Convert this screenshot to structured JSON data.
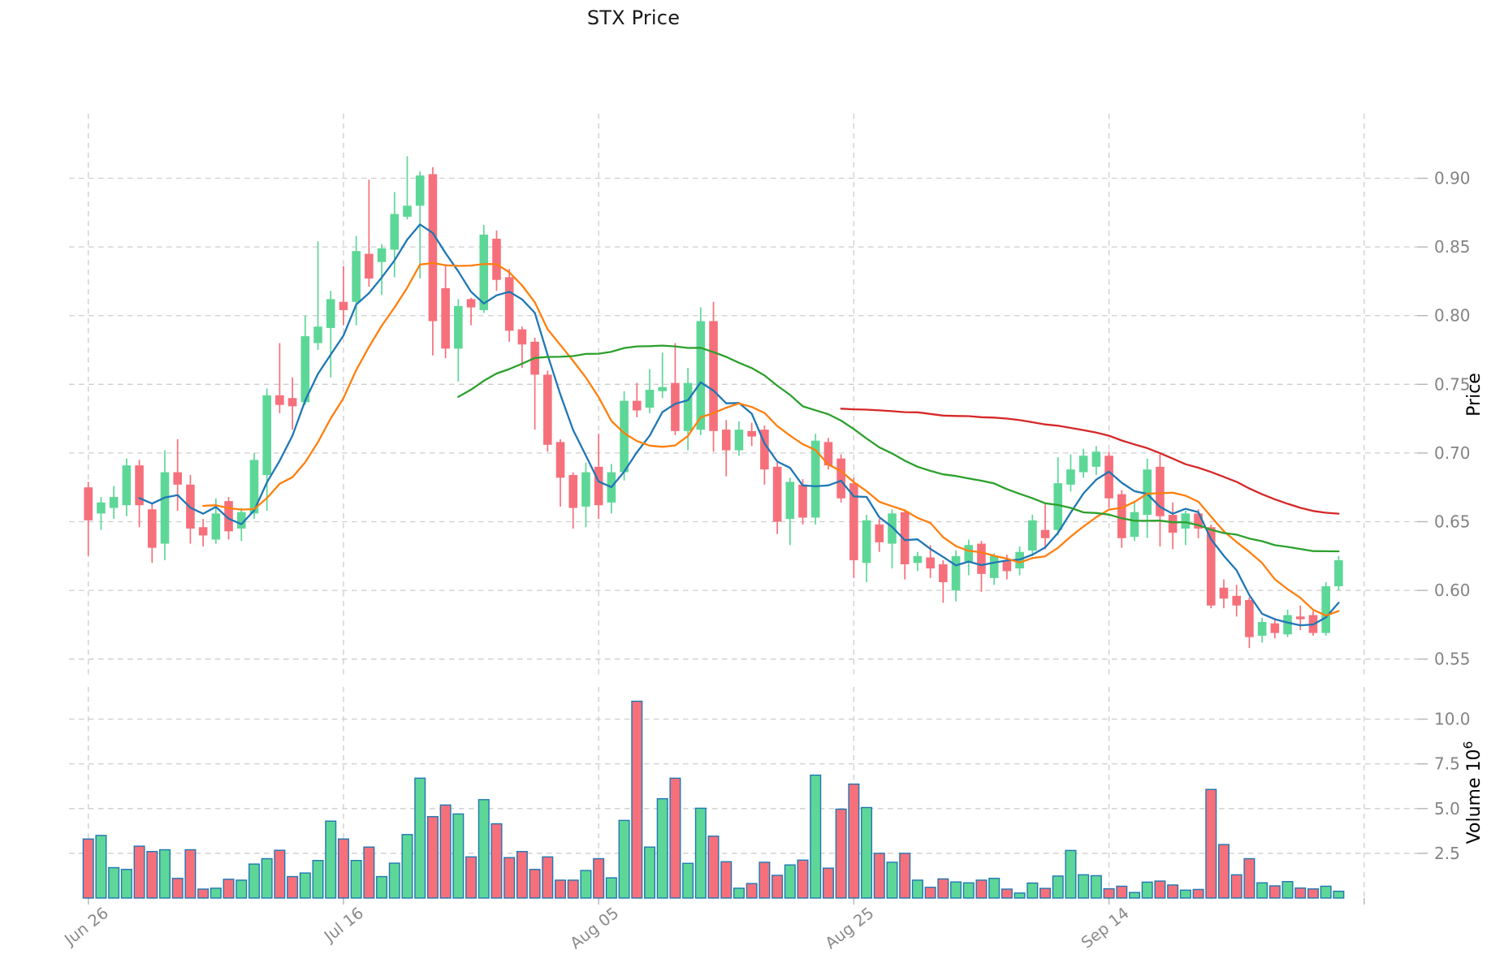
{
  "title": "STX Price",
  "axes": {
    "price_axis_label": "Price",
    "volume_axis_label": "Volume",
    "volume_axis_exponent": "10",
    "volume_axis_exponent_sup": "6",
    "price_tick_labels": [
      "0.90",
      "0.85",
      "0.80",
      "0.75",
      "0.70",
      "0.65",
      "0.60",
      "0.55"
    ],
    "volume_tick_labels": [
      "10.0",
      "7.5",
      "5.0",
      "2.5"
    ],
    "x_tick_labels": [
      "Jun 26",
      "Jul 16",
      "Aug 05",
      "Aug 25",
      "Sep 14"
    ]
  },
  "chart_data": {
    "type": "candlestick",
    "title": "STX Price",
    "xlabel": "",
    "ylabel": "Price",
    "ylabel2": "Volume 10^6",
    "grid": true,
    "legend_position": "none",
    "price_ticks": [
      0.9,
      0.85,
      0.8,
      0.75,
      0.7,
      0.65,
      0.6,
      0.55
    ],
    "volume_ticks_millions": [
      10.0,
      7.5,
      5.0,
      2.5
    ],
    "x_ticks": [
      {
        "index": 0,
        "label": "Jun 26"
      },
      {
        "index": 20,
        "label": "Jul 16"
      },
      {
        "index": 40,
        "label": "Aug 05"
      },
      {
        "index": 60,
        "label": "Aug 25"
      },
      {
        "index": 80,
        "label": "Sep 14"
      },
      {
        "index": 100,
        "label": ""
      }
    ],
    "price_range": [
      0.538,
      0.947
    ],
    "volume_range_millions": [
      0,
      11.8
    ],
    "overlays": [
      {
        "name": "sma-5",
        "period": 5,
        "color": "#1f77b4"
      },
      {
        "name": "sma-10",
        "period": 10,
        "color": "#ff7f0e"
      },
      {
        "name": "sma-30",
        "period": 30,
        "color": "#2ca02c"
      },
      {
        "name": "sma-60",
        "period": 60,
        "color": "#d62728"
      }
    ],
    "ohlcv": [
      [
        0.675,
        0.679,
        0.625,
        0.651,
        3.3
      ],
      [
        0.656,
        0.668,
        0.644,
        0.664,
        3.5
      ],
      [
        0.66,
        0.676,
        0.652,
        0.668,
        1.7
      ],
      [
        0.662,
        0.696,
        0.654,
        0.691,
        1.6
      ],
      [
        0.691,
        0.695,
        0.646,
        0.662,
        2.9
      ],
      [
        0.659,
        0.664,
        0.62,
        0.631,
        2.6
      ],
      [
        0.634,
        0.702,
        0.622,
        0.686,
        2.7
      ],
      [
        0.686,
        0.71,
        0.658,
        0.677,
        1.1
      ],
      [
        0.677,
        0.684,
        0.634,
        0.645,
        2.7
      ],
      [
        0.646,
        0.652,
        0.632,
        0.64,
        0.5
      ],
      [
        0.637,
        0.667,
        0.634,
        0.656,
        0.55
      ],
      [
        0.665,
        0.668,
        0.637,
        0.643,
        1.05
      ],
      [
        0.645,
        0.66,
        0.636,
        0.657,
        1.0
      ],
      [
        0.656,
        0.7,
        0.652,
        0.695,
        1.9
      ],
      [
        0.684,
        0.747,
        0.658,
        0.742,
        2.2
      ],
      [
        0.742,
        0.78,
        0.729,
        0.735,
        2.67
      ],
      [
        0.74,
        0.755,
        0.717,
        0.734,
        1.2
      ],
      [
        0.737,
        0.8,
        0.735,
        0.785,
        1.4
      ],
      [
        0.78,
        0.854,
        0.775,
        0.792,
        2.1
      ],
      [
        0.791,
        0.818,
        0.755,
        0.812,
        4.3
      ],
      [
        0.81,
        0.836,
        0.793,
        0.804,
        3.3
      ],
      [
        0.81,
        0.858,
        0.793,
        0.847,
        2.1
      ],
      [
        0.845,
        0.899,
        0.821,
        0.827,
        2.85
      ],
      [
        0.839,
        0.852,
        0.815,
        0.849,
        1.2
      ],
      [
        0.848,
        0.89,
        0.828,
        0.874,
        1.95
      ],
      [
        0.872,
        0.916,
        0.87,
        0.88,
        3.55
      ],
      [
        0.88,
        0.905,
        0.827,
        0.902,
        6.7
      ],
      [
        0.903,
        0.908,
        0.771,
        0.796,
        4.55
      ],
      [
        0.82,
        0.836,
        0.769,
        0.776,
        5.2
      ],
      [
        0.776,
        0.812,
        0.752,
        0.807,
        4.7
      ],
      [
        0.812,
        0.813,
        0.793,
        0.806,
        2.3
      ],
      [
        0.804,
        0.866,
        0.802,
        0.859,
        5.5
      ],
      [
        0.856,
        0.862,
        0.818,
        0.826,
        4.15
      ],
      [
        0.828,
        0.834,
        0.781,
        0.789,
        2.26
      ],
      [
        0.79,
        0.792,
        0.762,
        0.779,
        2.6
      ],
      [
        0.781,
        0.784,
        0.717,
        0.757,
        1.6
      ],
      [
        0.757,
        0.76,
        0.701,
        0.706,
        2.3
      ],
      [
        0.708,
        0.71,
        0.661,
        0.682,
        1.0
      ],
      [
        0.684,
        0.686,
        0.645,
        0.66,
        1.0
      ],
      [
        0.661,
        0.693,
        0.646,
        0.686,
        1.54
      ],
      [
        0.69,
        0.714,
        0.652,
        0.662,
        2.2
      ],
      [
        0.664,
        0.692,
        0.656,
        0.686,
        1.13
      ],
      [
        0.686,
        0.745,
        0.68,
        0.738,
        4.34
      ],
      [
        0.738,
        0.751,
        0.726,
        0.731,
        11.0
      ],
      [
        0.733,
        0.761,
        0.729,
        0.746,
        2.85
      ],
      [
        0.745,
        0.773,
        0.74,
        0.748,
        5.55
      ],
      [
        0.751,
        0.78,
        0.713,
        0.716,
        6.7
      ],
      [
        0.716,
        0.762,
        0.702,
        0.751,
        1.94
      ],
      [
        0.717,
        0.806,
        0.713,
        0.796,
        5.02
      ],
      [
        0.796,
        0.81,
        0.701,
        0.716,
        3.46
      ],
      [
        0.717,
        0.724,
        0.683,
        0.702,
        2.03
      ],
      [
        0.702,
        0.723,
        0.698,
        0.717,
        0.55
      ],
      [
        0.716,
        0.722,
        0.705,
        0.712,
        0.81
      ],
      [
        0.717,
        0.72,
        0.677,
        0.688,
        2.0
      ],
      [
        0.69,
        0.693,
        0.641,
        0.65,
        1.27
      ],
      [
        0.652,
        0.682,
        0.633,
        0.679,
        1.85
      ],
      [
        0.677,
        0.681,
        0.648,
        0.653,
        2.12
      ],
      [
        0.653,
        0.714,
        0.648,
        0.709,
        6.87
      ],
      [
        0.708,
        0.711,
        0.688,
        0.691,
        1.67
      ],
      [
        0.696,
        0.699,
        0.664,
        0.667,
        4.97
      ],
      [
        0.678,
        0.682,
        0.609,
        0.622,
        6.37
      ],
      [
        0.62,
        0.655,
        0.606,
        0.651,
        5.06
      ],
      [
        0.648,
        0.652,
        0.628,
        0.635,
        2.5
      ],
      [
        0.634,
        0.659,
        0.616,
        0.656,
        2.0
      ],
      [
        0.657,
        0.659,
        0.608,
        0.619,
        2.5
      ],
      [
        0.62,
        0.628,
        0.614,
        0.625,
        1.0
      ],
      [
        0.624,
        0.633,
        0.609,
        0.616,
        0.6
      ],
      [
        0.619,
        0.622,
        0.591,
        0.606,
        1.07
      ],
      [
        0.6,
        0.629,
        0.592,
        0.625,
        0.9
      ],
      [
        0.621,
        0.637,
        0.611,
        0.633,
        0.85
      ],
      [
        0.634,
        0.636,
        0.599,
        0.612,
        1.0
      ],
      [
        0.609,
        0.627,
        0.604,
        0.625,
        1.1
      ],
      [
        0.622,
        0.626,
        0.608,
        0.614,
        0.5
      ],
      [
        0.616,
        0.632,
        0.611,
        0.628,
        0.28
      ],
      [
        0.629,
        0.655,
        0.625,
        0.651,
        0.84
      ],
      [
        0.644,
        0.663,
        0.63,
        0.638,
        0.54
      ],
      [
        0.644,
        0.697,
        0.64,
        0.678,
        1.23
      ],
      [
        0.677,
        0.699,
        0.672,
        0.688,
        2.66
      ],
      [
        0.686,
        0.703,
        0.682,
        0.698,
        1.3
      ],
      [
        0.69,
        0.705,
        0.684,
        0.701,
        1.25
      ],
      [
        0.698,
        0.701,
        0.66,
        0.667,
        0.52
      ],
      [
        0.67,
        0.673,
        0.631,
        0.638,
        0.66
      ],
      [
        0.639,
        0.665,
        0.636,
        0.657,
        0.31
      ],
      [
        0.655,
        0.696,
        0.638,
        0.688,
        0.89
      ],
      [
        0.69,
        0.699,
        0.632,
        0.654,
        0.95
      ],
      [
        0.655,
        0.664,
        0.63,
        0.642,
        0.73
      ],
      [
        0.645,
        0.658,
        0.633,
        0.656,
        0.44
      ],
      [
        0.656,
        0.659,
        0.638,
        0.645,
        0.48
      ],
      [
        0.646,
        0.648,
        0.587,
        0.589,
        6.07
      ],
      [
        0.602,
        0.608,
        0.587,
        0.594,
        2.99
      ],
      [
        0.596,
        0.604,
        0.581,
        0.589,
        1.3
      ],
      [
        0.593,
        0.595,
        0.558,
        0.566,
        2.2
      ],
      [
        0.567,
        0.58,
        0.562,
        0.577,
        0.85
      ],
      [
        0.576,
        0.58,
        0.565,
        0.569,
        0.68
      ],
      [
        0.568,
        0.586,
        0.566,
        0.582,
        0.92
      ],
      [
        0.581,
        0.589,
        0.571,
        0.579,
        0.56
      ],
      [
        0.582,
        0.585,
        0.567,
        0.569,
        0.51
      ],
      [
        0.569,
        0.606,
        0.567,
        0.603,
        0.66
      ],
      [
        0.603,
        0.625,
        0.6,
        0.622,
        0.38
      ]
    ]
  },
  "colors": {
    "up": "#5dd797",
    "down": "#f6707b",
    "volume_edge": "#2077b4",
    "grid": "#cdcdcd",
    "tick_text": "#848484",
    "title_text": "#1a1a1a",
    "axis_label_text": "#000000",
    "background": "#ffffff"
  }
}
